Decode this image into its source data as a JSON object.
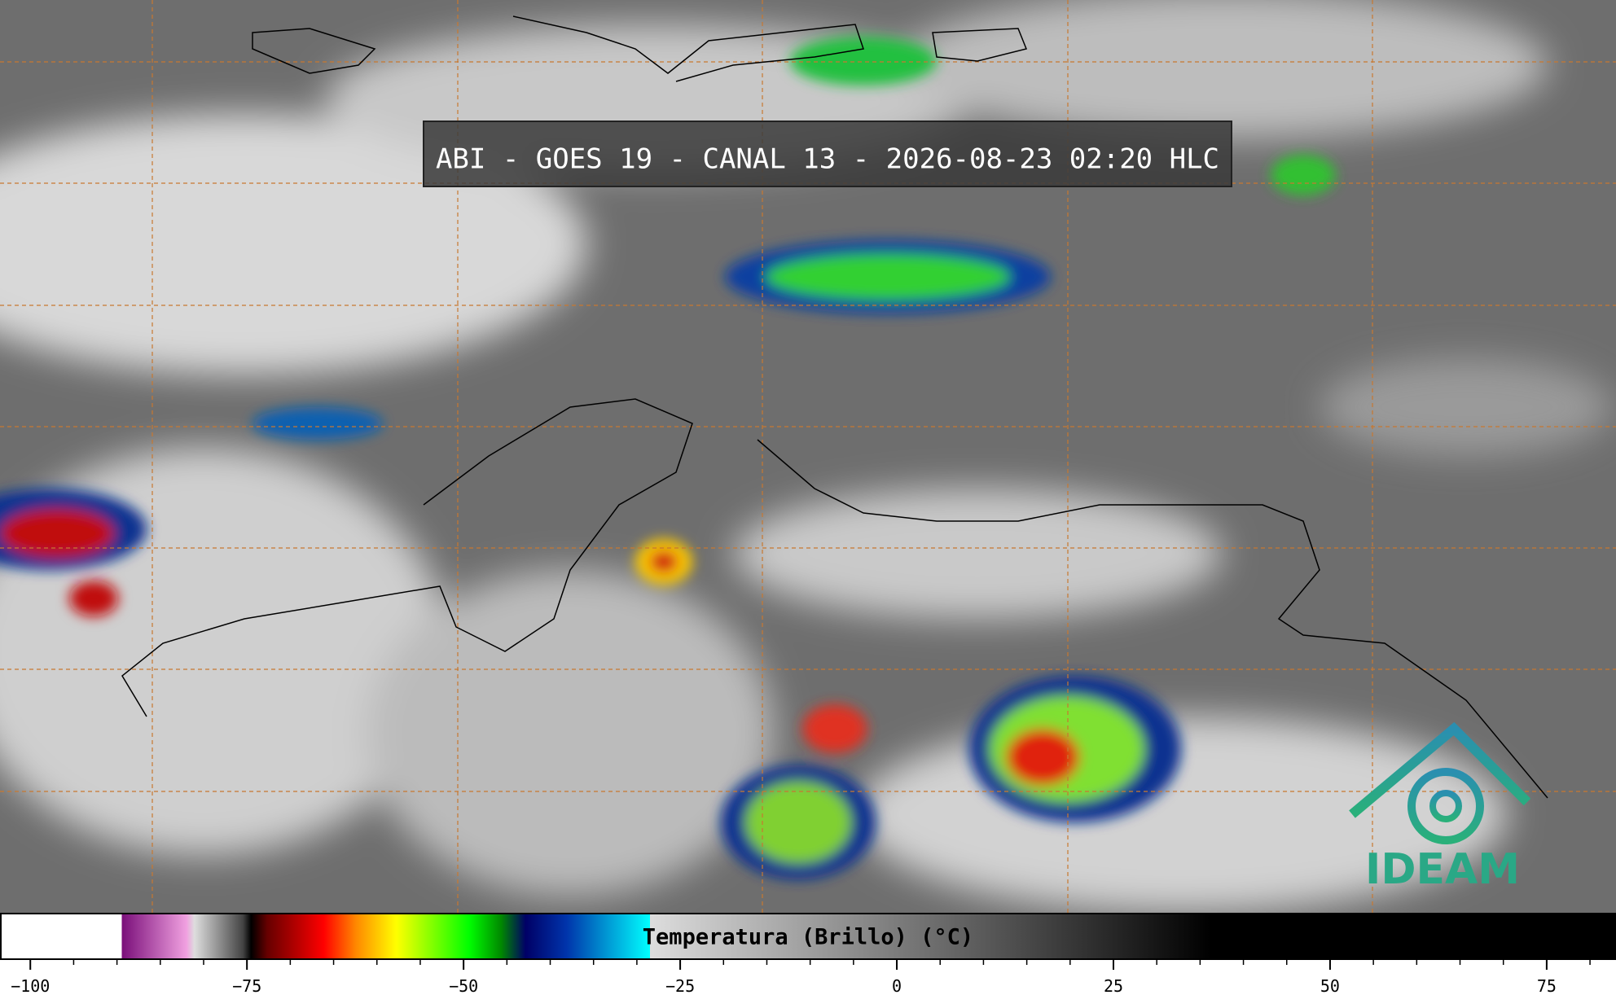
{
  "title": "ABI - GOES 19 - CANAL 13 - 2026-08-23 02:20 HLC",
  "logo": "IDEAM",
  "colorbar": {
    "label": "Temperatura (Brillo) (°C)",
    "lim": [
      -103.5,
      83
    ],
    "ticks": [
      {
        "value": -100,
        "label": "−100"
      },
      {
        "value": -75,
        "label": "−75"
      },
      {
        "value": -50,
        "label": "−50"
      },
      {
        "value": -25,
        "label": "−25"
      },
      0,
      25,
      50,
      75
    ],
    "minor_step": 5
  }
}
